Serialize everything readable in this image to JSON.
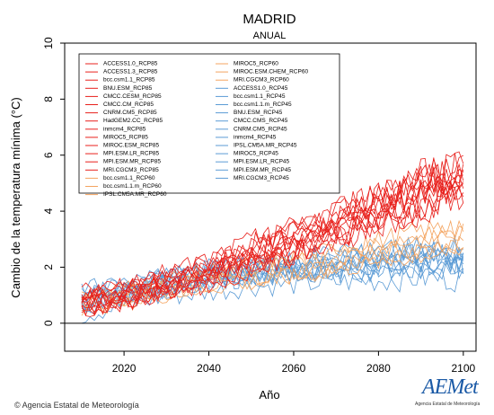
{
  "chart_data": {
    "type": "line",
    "title": "MADRID",
    "subtitle": "ANUAL",
    "xlabel": "Año",
    "ylabel": "Cambio de la temperatura mínima (°C)",
    "xlim": [
      2006,
      2103
    ],
    "ylim": [
      -1,
      10
    ],
    "xticks": [
      2020,
      2040,
      2060,
      2080,
      2100
    ],
    "yticks": [
      0,
      2,
      4,
      6,
      8,
      10
    ],
    "grid": false,
    "legend": "top-left",
    "colors": {
      "rcp85": "#e8201c",
      "rcp60": "#f4a460",
      "rcp45": "#5b9bd5",
      "zero_line": "#000000"
    },
    "series_groups": [
      {
        "scenario": "RCP85",
        "color": "#e8201c",
        "x": [
          2010,
          2020,
          2030,
          2040,
          2050,
          2060,
          2070,
          2080,
          2090,
          2100
        ],
        "y_mean": [
          0.8,
          1.1,
          1.5,
          1.9,
          2.5,
          3.0,
          3.6,
          4.2,
          4.8,
          5.3
        ],
        "y_low": [
          0.2,
          0.5,
          0.8,
          1.1,
          1.5,
          2.0,
          2.5,
          3.0,
          3.3,
          3.8
        ],
        "y_high": [
          1.6,
          1.9,
          2.3,
          2.8,
          3.4,
          4.0,
          4.7,
          5.3,
          6.2,
          6.3
        ]
      },
      {
        "scenario": "RCP60",
        "color": "#f4a460",
        "x": [
          2010,
          2020,
          2030,
          2040,
          2050,
          2060,
          2070,
          2080,
          2090,
          2100
        ],
        "y_mean": [
          0.8,
          1.0,
          1.3,
          1.6,
          1.8,
          2.0,
          2.3,
          2.6,
          2.9,
          3.1
        ],
        "y_low": [
          0.3,
          0.5,
          0.7,
          0.9,
          1.1,
          1.3,
          1.5,
          1.8,
          2.0,
          2.2
        ],
        "y_high": [
          1.4,
          1.7,
          1.9,
          2.2,
          2.5,
          2.7,
          3.0,
          3.4,
          3.7,
          4.0
        ]
      },
      {
        "scenario": "RCP45",
        "color": "#5b9bd5",
        "x": [
          2010,
          2020,
          2030,
          2040,
          2050,
          2060,
          2070,
          2080,
          2090,
          2100
        ],
        "y_mean": [
          0.7,
          1.0,
          1.3,
          1.5,
          1.7,
          1.8,
          1.9,
          2.0,
          2.1,
          2.1
        ],
        "y_low": [
          -0.3,
          0.3,
          0.5,
          0.7,
          0.9,
          1.0,
          1.1,
          1.1,
          1.2,
          1.2
        ],
        "y_high": [
          1.5,
          1.8,
          2.1,
          2.4,
          2.6,
          2.8,
          3.0,
          3.1,
          3.3,
          3.4
        ]
      }
    ],
    "legend_entries": [
      {
        "label": "ACCESS1.0_RCP85",
        "color": "#e8201c"
      },
      {
        "label": "ACCESS1.3_RCP85",
        "color": "#e8201c"
      },
      {
        "label": "bcc.csm1.1_RCP85",
        "color": "#e8201c"
      },
      {
        "label": "BNU.ESM_RCP85",
        "color": "#e8201c"
      },
      {
        "label": "CMCC.CESM_RCP85",
        "color": "#e8201c"
      },
      {
        "label": "CMCC.CM_RCP85",
        "color": "#e8201c"
      },
      {
        "label": "CNRM.CM5_RCP85",
        "color": "#e8201c"
      },
      {
        "label": "HadGEM2.CC_RCP85",
        "color": "#e8201c"
      },
      {
        "label": "inmcm4_RCP85",
        "color": "#e8201c"
      },
      {
        "label": "MIROC5_RCP85",
        "color": "#e8201c"
      },
      {
        "label": "MIROC.ESM_RCP85",
        "color": "#e8201c"
      },
      {
        "label": "MPI.ESM.LR_RCP85",
        "color": "#e8201c"
      },
      {
        "label": "MPI.ESM.MR_RCP85",
        "color": "#e8201c"
      },
      {
        "label": "MRI.CGCM3_RCP85",
        "color": "#e8201c"
      },
      {
        "label": "bcc.csm1.1_RCP60",
        "color": "#f4a460"
      },
      {
        "label": "bcc.csm1.1.m_RCP60",
        "color": "#f4a460"
      },
      {
        "label": "IPSL.CM5A.MR_RCP60",
        "color": "#f4a460"
      },
      {
        "label": "MIROC5_RCP60",
        "color": "#f4a460"
      },
      {
        "label": "MIROC.ESM.CHEM_RCP60",
        "color": "#f4a460"
      },
      {
        "label": "MRI.CGCM3_RCP60",
        "color": "#f4a460"
      },
      {
        "label": "ACCESS1.0_RCP45",
        "color": "#5b9bd5"
      },
      {
        "label": "bcc.csm1.1_RCP45",
        "color": "#5b9bd5"
      },
      {
        "label": "bcc.csm1.1.m_RCP45",
        "color": "#5b9bd5"
      },
      {
        "label": "BNU.ESM_RCP45",
        "color": "#5b9bd5"
      },
      {
        "label": "CMCC.CMS_RCP45",
        "color": "#5b9bd5"
      },
      {
        "label": "CNRM.CM5_RCP45",
        "color": "#5b9bd5"
      },
      {
        "label": "inmcm4_RCP45",
        "color": "#5b9bd5"
      },
      {
        "label": "IPSL.CM5A.MR_RCP45",
        "color": "#5b9bd5"
      },
      {
        "label": "MIROC5_RCP45",
        "color": "#5b9bd5"
      },
      {
        "label": "MPI.ESM.LR_RCP45",
        "color": "#5b9bd5"
      },
      {
        "label": "MPI.ESM.MR_RCP45",
        "color": "#5b9bd5"
      },
      {
        "label": "MRI.CGCM3_RCP45",
        "color": "#5b9bd5"
      }
    ]
  },
  "footer": {
    "credit": "© Agencia Estatal de Meteorología",
    "logo_text": "AEMet",
    "logo_sub": "Agencia Estatal de Meteorología"
  }
}
